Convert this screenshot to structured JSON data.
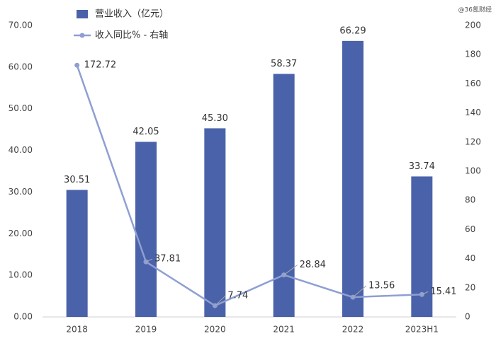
{
  "chart_data": {
    "type": "bar-line",
    "watermark": "@36氪财经",
    "categories": [
      "2018",
      "2019",
      "2020",
      "2021",
      "2022",
      "2023H1"
    ],
    "series": [
      {
        "name": "营业收入（亿元）",
        "type": "bar",
        "color": "#4a62a9",
        "values": [
          30.51,
          42.05,
          45.3,
          58.37,
          66.29,
          33.74
        ],
        "value_labels": [
          "30.51",
          "42.05",
          "45.30",
          "58.37",
          "66.29",
          "33.74"
        ]
      },
      {
        "name": "收入同比% - 右轴",
        "type": "line",
        "color": "#8f9fd2",
        "axis": "y2",
        "values": [
          172.72,
          37.81,
          7.74,
          28.84,
          13.56,
          15.41
        ]
      }
    ],
    "ylim": [
      0,
      70
    ],
    "yticks": [
      {
        "value": 0,
        "label": "0.00"
      },
      {
        "value": 10,
        "label": "10.00"
      },
      {
        "value": 20,
        "label": "20.00"
      },
      {
        "value": 30,
        "label": "30.00"
      },
      {
        "value": 40,
        "label": "40.00"
      },
      {
        "value": 50,
        "label": "50.00"
      },
      {
        "value": 60,
        "label": "60.00"
      },
      {
        "value": 70,
        "label": "70.00"
      }
    ],
    "y2lim": [
      0,
      200
    ],
    "y2ticks": [
      0,
      20,
      40,
      60,
      80,
      100,
      120,
      140,
      160,
      180,
      200
    ]
  }
}
